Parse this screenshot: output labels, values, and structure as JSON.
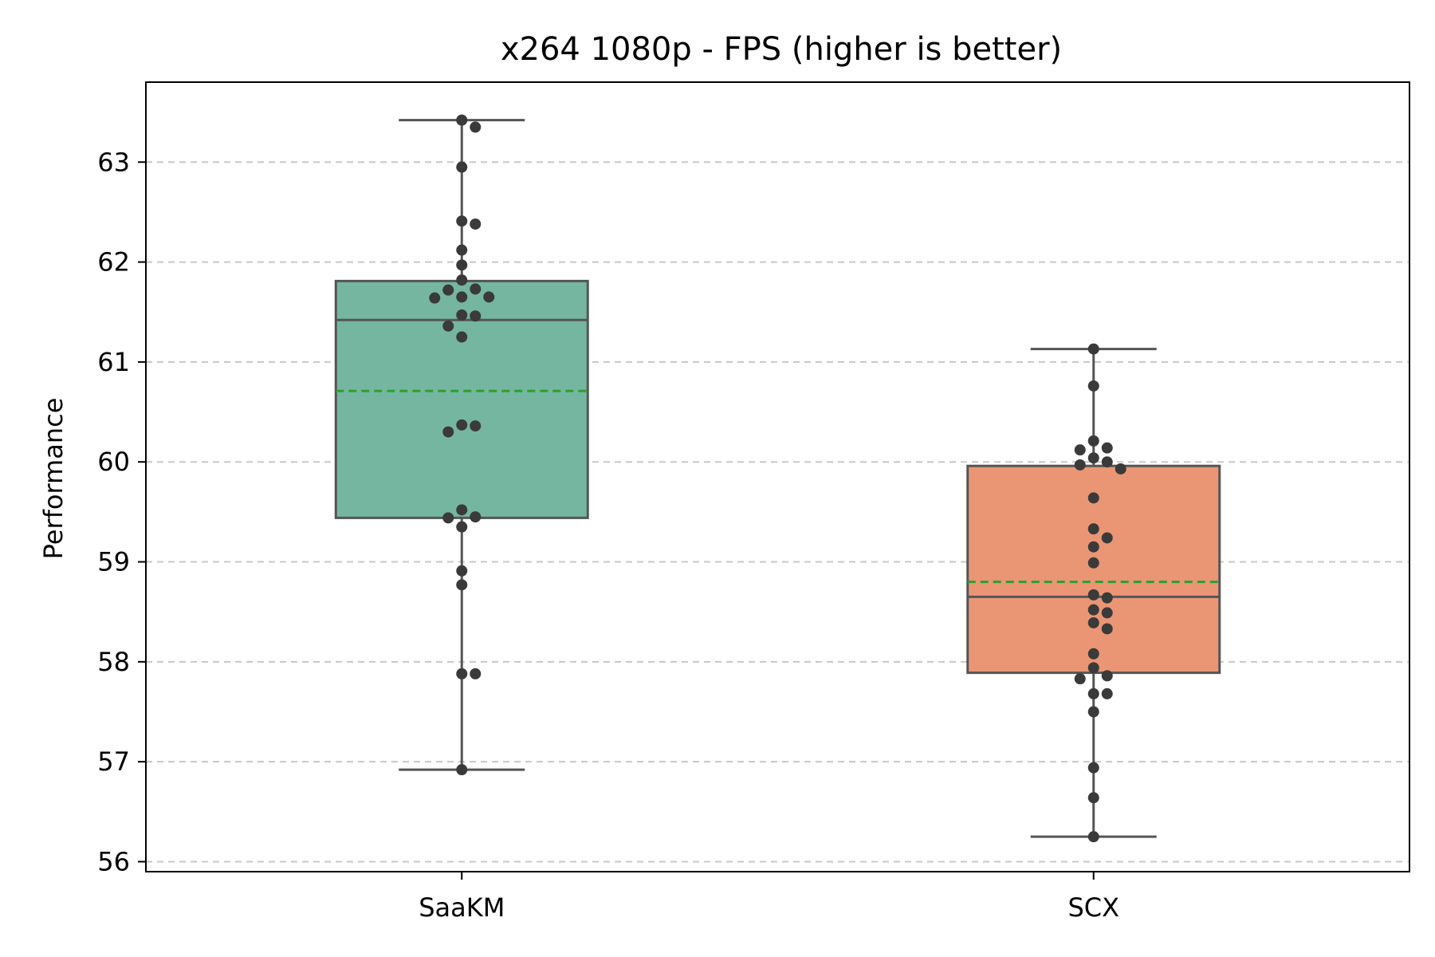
{
  "chart_data": {
    "type": "box",
    "title": "x264 1080p - FPS (higher is better)",
    "xlabel": "",
    "ylabel": "Performance",
    "ylim": [
      55.9,
      63.8
    ],
    "yticks": [
      56,
      57,
      58,
      59,
      60,
      61,
      62,
      63
    ],
    "grid": "y-dashed",
    "categories": [
      "SaaKM",
      "SCX"
    ],
    "colors": {
      "SaaKM": "#75b6a1",
      "SCX": "#ea9675",
      "mean_line": "#2ca02c",
      "box_edge": "#555555",
      "points": "#3a3a3a",
      "grid": "#c8c8c8"
    },
    "boxes": [
      {
        "name": "SaaKM",
        "whisker_low": 56.92,
        "q1": 59.44,
        "median": 61.42,
        "q3": 61.81,
        "whisker_high": 63.42,
        "mean": 60.71
      },
      {
        "name": "SCX",
        "whisker_low": 56.25,
        "q1": 57.89,
        "median": 58.65,
        "q3": 59.96,
        "whisker_high": 61.13,
        "mean": 58.8
      }
    ],
    "points": [
      {
        "name": "SaaKM",
        "values": [
          63.42,
          63.35,
          62.95,
          62.41,
          62.38,
          62.12,
          61.97,
          61.82,
          61.73,
          61.72,
          61.65,
          61.65,
          61.64,
          61.47,
          61.46,
          61.36,
          61.25,
          60.37,
          60.36,
          60.3,
          59.52,
          59.45,
          59.44,
          59.35,
          58.91,
          58.77,
          57.88,
          57.88,
          56.92
        ]
      },
      {
        "name": "SCX",
        "values": [
          61.13,
          60.76,
          60.21,
          60.14,
          60.12,
          60.04,
          60.0,
          59.97,
          59.93,
          59.64,
          59.33,
          59.24,
          59.15,
          58.99,
          58.67,
          58.64,
          58.52,
          58.49,
          58.39,
          58.33,
          58.08,
          57.94,
          57.86,
          57.83,
          57.68,
          57.68,
          57.5,
          56.94,
          56.64,
          56.25
        ]
      }
    ]
  }
}
